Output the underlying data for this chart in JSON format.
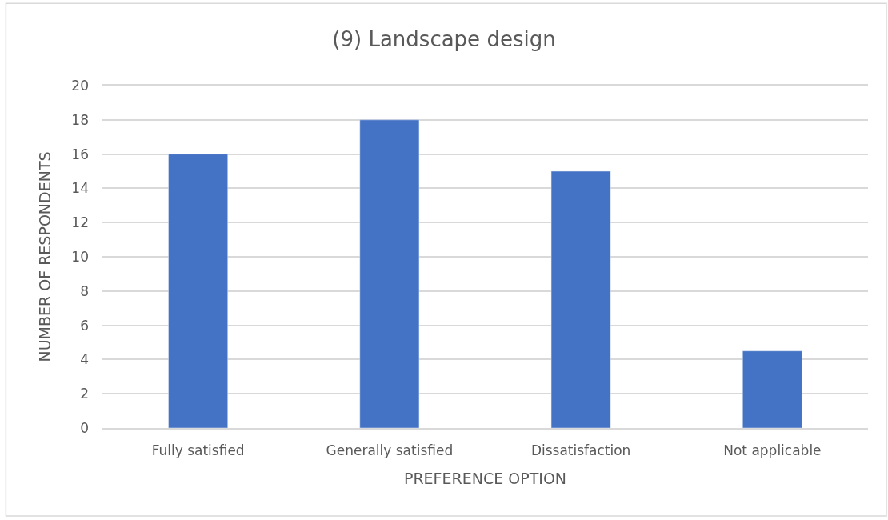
{
  "chart_data": {
    "type": "bar",
    "title": "(9) Landscape design",
    "xlabel": "PREFERENCE OPTION",
    "ylabel": "NUMBER OF RESPONDENTS",
    "categories": [
      "Fully satisfied",
      "Generally satisfied",
      "Dissatisfaction",
      "Not applicable"
    ],
    "values": [
      16,
      18,
      15,
      4.5
    ],
    "color": "#4472c4",
    "ylim": [
      0,
      20
    ],
    "yticks": [
      0,
      2,
      4,
      6,
      8,
      10,
      12,
      14,
      16,
      18,
      20
    ],
    "grid": "y"
  }
}
